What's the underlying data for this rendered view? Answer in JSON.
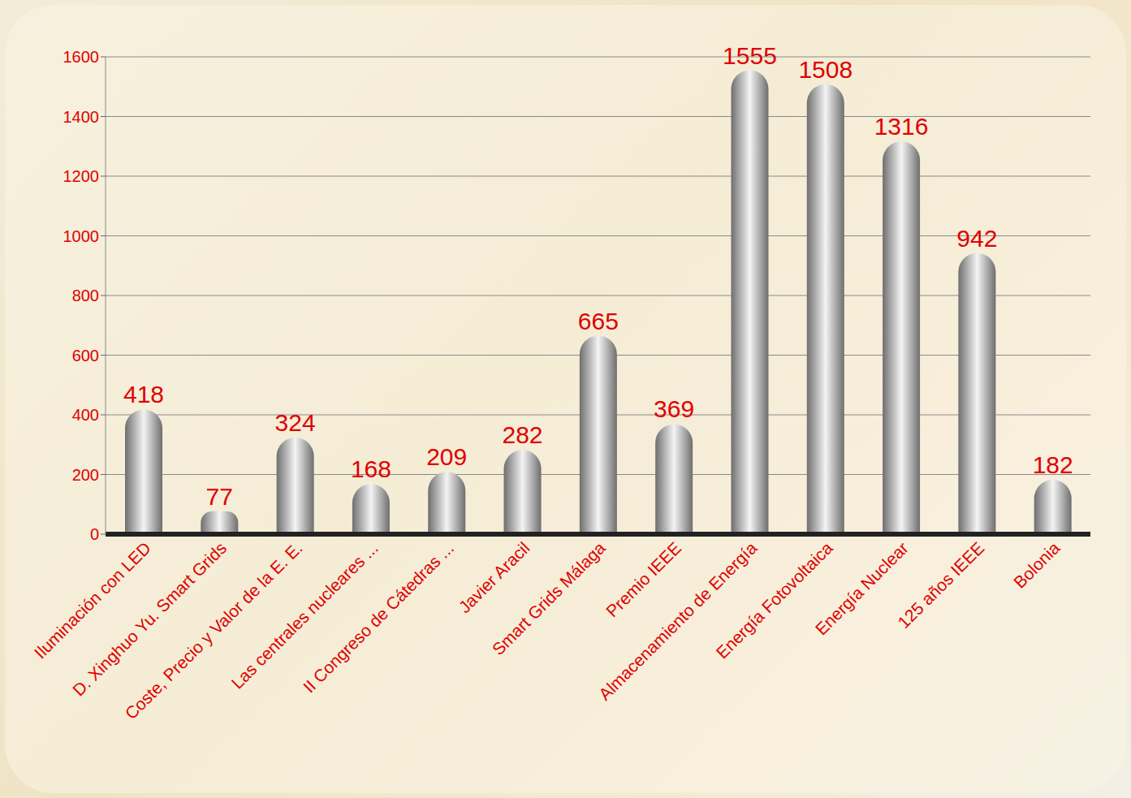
{
  "chart_data": {
    "type": "bar",
    "categories": [
      "Iluminación con LED",
      "D. Xinghuo Yu. Smart Grids",
      "Coste, Precio y Valor de la E. E.",
      "Las centrales nucleares ...",
      "II Congreso de Cátedras ...",
      "Javier Aracil",
      "Smart Grids Málaga",
      "Premio IEEE",
      "Almacenamiento de Energía",
      "Energía Fotovoltaica",
      "Energía Nuclear",
      "125 años IEEE",
      "Bolonia"
    ],
    "values": [
      418,
      77,
      324,
      168,
      209,
      282,
      665,
      369,
      1555,
      1508,
      1316,
      942,
      182
    ],
    "color": "#6e6e6e",
    "ylim": [
      0,
      1600
    ],
    "yticks": [
      0,
      200,
      400,
      600,
      800,
      1000,
      1200,
      1400,
      1600
    ],
    "grid": true,
    "data_labels": true
  }
}
